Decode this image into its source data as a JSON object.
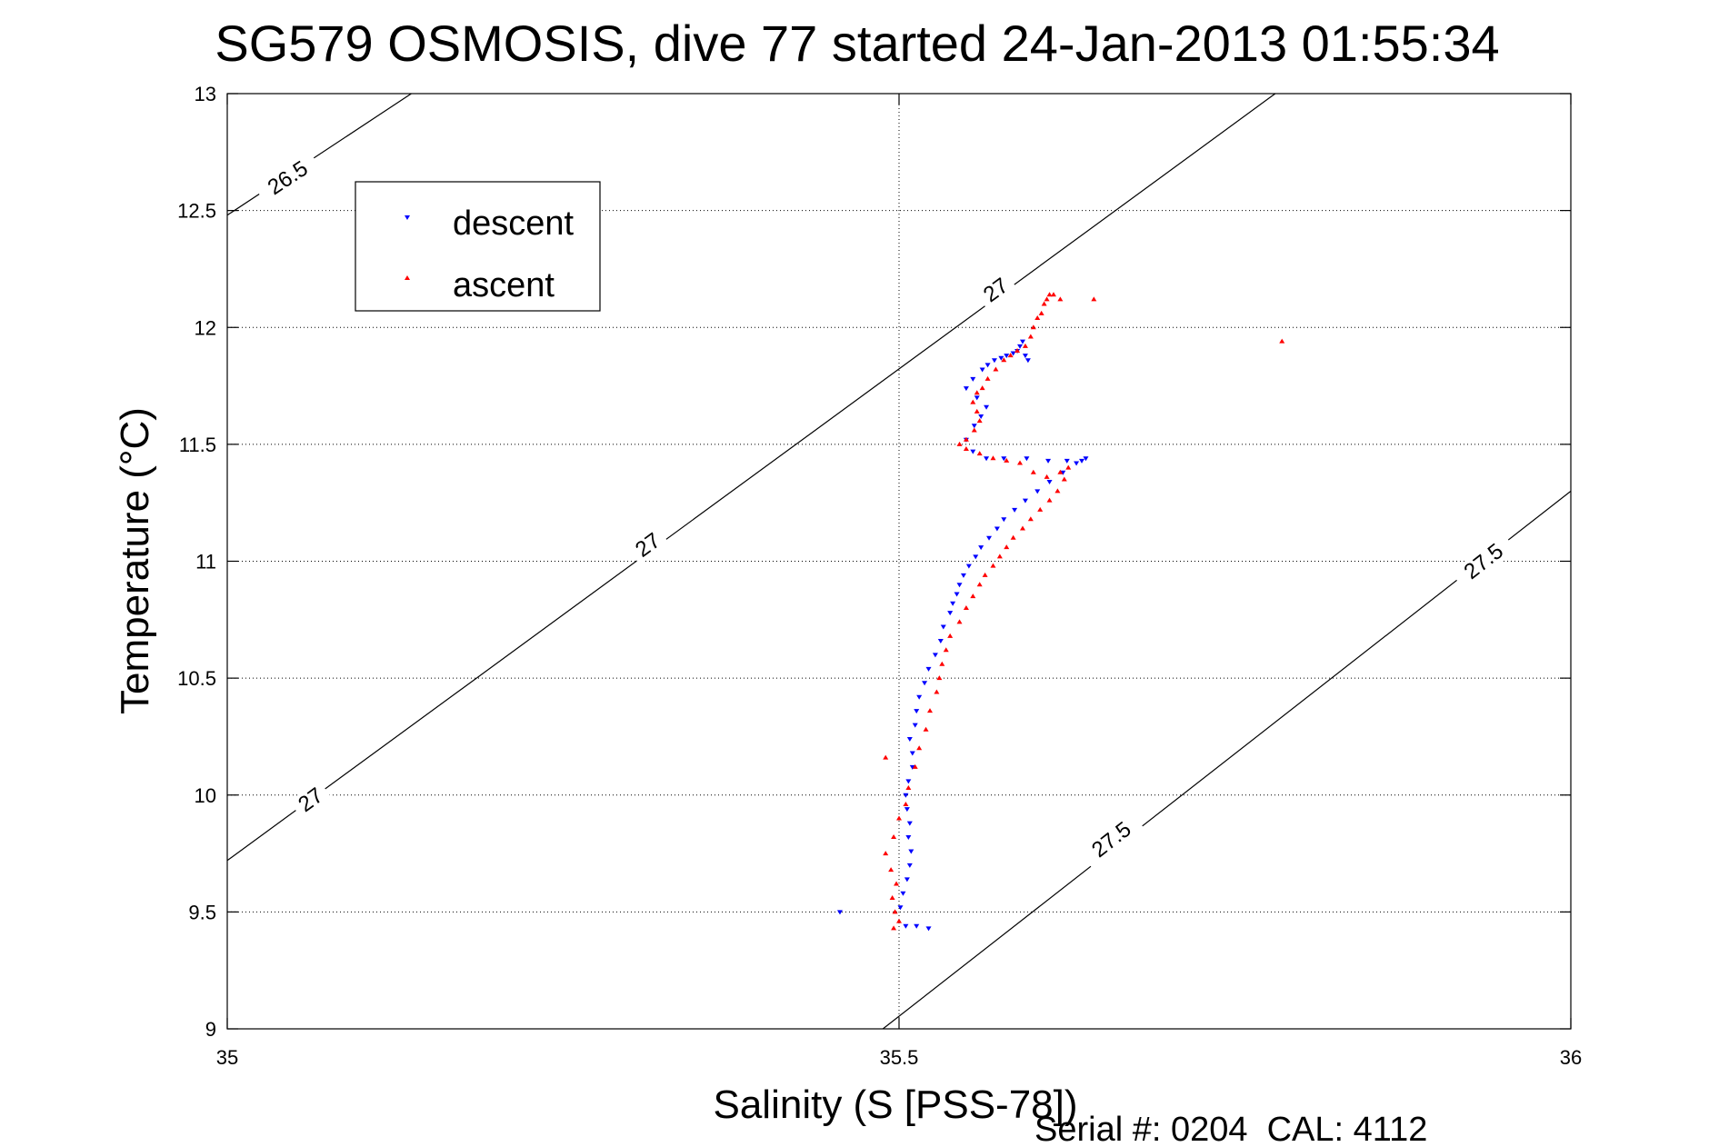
{
  "chart_data": {
    "type": "scatter",
    "title": "SG579 OSMOSIS, dive 77 started 24-Jan-2013 01:55:34",
    "xlabel": "Salinity (S [PSS-78])",
    "ylabel": "Temperature (°C)",
    "footer": "Serial #: 0204  CAL: 4112",
    "xlim": [
      35,
      36
    ],
    "ylim": [
      9,
      13
    ],
    "xticks": [
      35,
      35.5,
      36
    ],
    "xtick_labels": [
      "35",
      "35.5",
      "36"
    ],
    "yticks": [
      9,
      9.5,
      10,
      10.5,
      11,
      11.5,
      12,
      12.5,
      13
    ],
    "ytick_labels": [
      "9",
      "9.5",
      "10",
      "10.5",
      "11",
      "11.5",
      "12",
      "12.5",
      "13"
    ],
    "grid": true,
    "grid_lines": "x=35.5 and every y tick, dotted",
    "legend": {
      "position": "top-left",
      "entries": [
        "descent",
        "ascent"
      ]
    },
    "density_contours": [
      {
        "level": "26.5",
        "points": [
          [
            35.0,
            12.48
          ],
          [
            35.137,
            13.0
          ]
        ],
        "labels": [
          {
            "text": "26.5",
            "x": 35.045,
            "y": 12.64
          }
        ]
      },
      {
        "level": "27",
        "points": [
          [
            35.0,
            9.72
          ],
          [
            35.78,
            13.0
          ]
        ],
        "labels": [
          {
            "text": "27",
            "x": 35.062,
            "y": 9.98
          },
          {
            "text": "27",
            "x": 35.313,
            "y": 11.07
          },
          {
            "text": "27",
            "x": 35.572,
            "y": 12.16
          }
        ]
      },
      {
        "level": "27.5",
        "points": [
          [
            35.488,
            9.0
          ],
          [
            36.0,
            11.3
          ]
        ],
        "labels": [
          {
            "text": "27.5",
            "x": 35.658,
            "y": 9.81
          },
          {
            "text": "27.5",
            "x": 35.935,
            "y": 11.0
          }
        ]
      }
    ],
    "series": [
      {
        "name": "descent",
        "color": "#0000ff",
        "marker": "triangle-down",
        "x": [
          35.456,
          35.505,
          35.513,
          35.522,
          35.501,
          35.503,
          35.506,
          35.508,
          35.509,
          35.507,
          35.508,
          35.506,
          35.505,
          35.507,
          35.51,
          35.51,
          35.508,
          35.512,
          35.513,
          35.515,
          35.519,
          35.522,
          35.527,
          35.531,
          35.533,
          35.538,
          35.54,
          35.543,
          35.545,
          35.548,
          35.552,
          35.557,
          35.561,
          35.567,
          35.573,
          35.578,
          35.586,
          35.594,
          35.603,
          35.612,
          35.622,
          35.632,
          35.639,
          35.636,
          35.625,
          35.611,
          35.595,
          35.578,
          35.565,
          35.555,
          35.55,
          35.556,
          35.561,
          35.565,
          35.558,
          35.55,
          35.555,
          35.562,
          35.566,
          35.571,
          35.576,
          35.58,
          35.585,
          35.588,
          35.59,
          35.592,
          35.594,
          35.596
        ],
        "y": [
          9.5,
          9.44,
          9.44,
          9.43,
          9.52,
          9.58,
          9.64,
          9.7,
          9.76,
          9.82,
          9.88,
          9.94,
          10.0,
          10.06,
          10.12,
          10.18,
          10.24,
          10.3,
          10.36,
          10.42,
          10.48,
          10.54,
          10.6,
          10.66,
          10.72,
          10.78,
          10.82,
          10.86,
          10.9,
          10.94,
          10.98,
          11.02,
          11.06,
          11.1,
          11.14,
          11.18,
          11.22,
          11.26,
          11.3,
          11.34,
          11.38,
          11.42,
          11.44,
          11.43,
          11.43,
          11.43,
          11.44,
          11.44,
          11.44,
          11.47,
          11.52,
          11.58,
          11.62,
          11.66,
          11.7,
          11.74,
          11.78,
          11.82,
          11.84,
          11.86,
          11.87,
          11.88,
          11.89,
          11.9,
          11.92,
          11.94,
          11.88,
          11.86
        ]
      },
      {
        "name": "ascent",
        "color": "#ff0000",
        "marker": "triangle-up",
        "x": [
          35.496,
          35.5,
          35.497,
          35.495,
          35.498,
          35.494,
          35.49,
          35.496,
          35.5,
          35.505,
          35.49,
          35.507,
          35.512,
          35.515,
          35.52,
          35.523,
          35.528,
          35.53,
          35.532,
          35.535,
          35.538,
          35.545,
          35.55,
          35.555,
          35.56,
          35.564,
          35.57,
          35.575,
          35.58,
          35.585,
          35.592,
          35.598,
          35.605,
          35.612,
          35.618,
          35.623,
          35.626,
          35.62,
          35.61,
          35.6,
          35.59,
          35.58,
          35.57,
          35.56,
          35.55,
          35.545,
          35.55,
          35.556,
          35.56,
          35.558,
          35.555,
          35.558,
          35.562,
          35.566,
          35.572,
          35.578,
          35.583,
          35.588,
          35.594,
          35.598,
          35.6,
          35.603,
          35.606,
          35.608,
          35.61,
          35.612,
          35.615,
          35.62,
          35.645,
          35.785
        ],
        "y": [
          9.43,
          9.46,
          9.5,
          9.56,
          9.62,
          9.68,
          9.75,
          9.82,
          9.9,
          9.96,
          10.16,
          10.03,
          10.12,
          10.2,
          10.28,
          10.36,
          10.44,
          10.5,
          10.56,
          10.62,
          10.68,
          10.74,
          10.8,
          10.85,
          10.9,
          10.94,
          10.98,
          11.02,
          11.06,
          11.1,
          11.14,
          11.18,
          11.22,
          11.26,
          11.3,
          11.35,
          11.4,
          11.38,
          11.36,
          11.38,
          11.42,
          11.43,
          11.44,
          11.46,
          11.48,
          11.5,
          11.52,
          11.56,
          11.6,
          11.64,
          11.68,
          11.72,
          11.74,
          11.78,
          11.82,
          11.86,
          11.88,
          11.9,
          11.92,
          11.96,
          12.0,
          12.04,
          12.06,
          12.1,
          12.12,
          12.14,
          12.14,
          12.12,
          12.12,
          11.94
        ]
      }
    ]
  }
}
